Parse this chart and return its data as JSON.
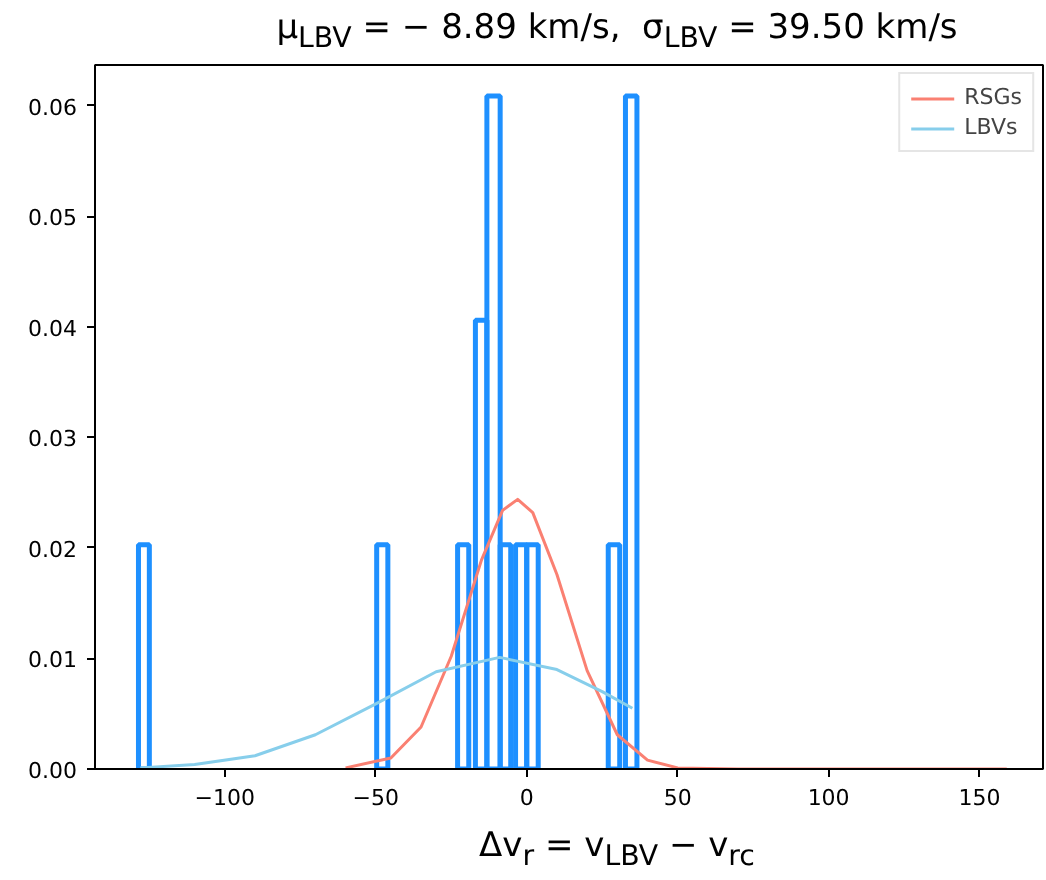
{
  "chart_data": {
    "type": "histogram",
    "title": "μ$_{LBV}$ = − 8.89 km/s,  σ$_{LBV}$ = 39.50 km/s",
    "xlabel": "Δv$_{r}$ = v$_{LBV}$ − v$_{rc}$",
    "xlim": [
      -143,
      171
    ],
    "ylim": [
      0,
      0.0637
    ],
    "xticks": [
      {
        "value": -100,
        "label": "−100"
      },
      {
        "value": -50,
        "label": "−50"
      },
      0,
      50,
      100,
      150
    ],
    "yticks": [
      {
        "value": 0,
        "label": "0.00"
      },
      {
        "value": 0.01,
        "label": "0.01"
      },
      {
        "value": 0.02,
        "label": "0.02"
      },
      {
        "value": 0.03,
        "label": "0.03"
      },
      {
        "value": 0.04,
        "label": "0.04"
      },
      {
        "value": 0.05,
        "label": "0.05"
      },
      {
        "value": 0.06,
        "label": "0.06"
      }
    ],
    "legend": "top right",
    "series": [
      {
        "color": "#1e90ff",
        "bins": [
          -128.6,
          -125.0,
          -49.7,
          -46.0,
          -22.9,
          -19.2,
          -17.0,
          -13.2,
          -8.8,
          -5.3,
          -3.7,
          0,
          3.8,
          27.0,
          30.8,
          32.7,
          36.5
        ],
        "values": [
          0.0203,
          0,
          0.0203,
          0,
          0.0203,
          0,
          0.0406,
          0.0609,
          0.0203,
          0,
          0.0203,
          0.0203,
          0,
          0.0203,
          0,
          0.0609
        ]
      },
      {
        "type": "line",
        "name": "RSGs",
        "color": "#fa8072",
        "x": [
          -60,
          -45,
          -35,
          -25,
          -15,
          -8,
          -3,
          2,
          10,
          20,
          30,
          40,
          50,
          70,
          100,
          130,
          159
        ],
        "values": [
          0.0001,
          0.001,
          0.0038,
          0.0102,
          0.0189,
          0.0234,
          0.0244,
          0.0232,
          0.0176,
          0.0089,
          0.0031,
          0.0008,
          0.0001,
          0,
          0,
          0,
          0
        ]
      },
      {
        "type": "line",
        "name": "LBVs",
        "color": "#87ceeb",
        "x": [
          -128,
          -110,
          -90,
          -70,
          -50,
          -30,
          -9,
          10,
          25,
          35
        ],
        "values": [
          0.0001,
          0.0004,
          0.0012,
          0.0031,
          0.0059,
          0.0088,
          0.0101,
          0.009,
          0.007,
          0.0055
        ]
      }
    ]
  }
}
